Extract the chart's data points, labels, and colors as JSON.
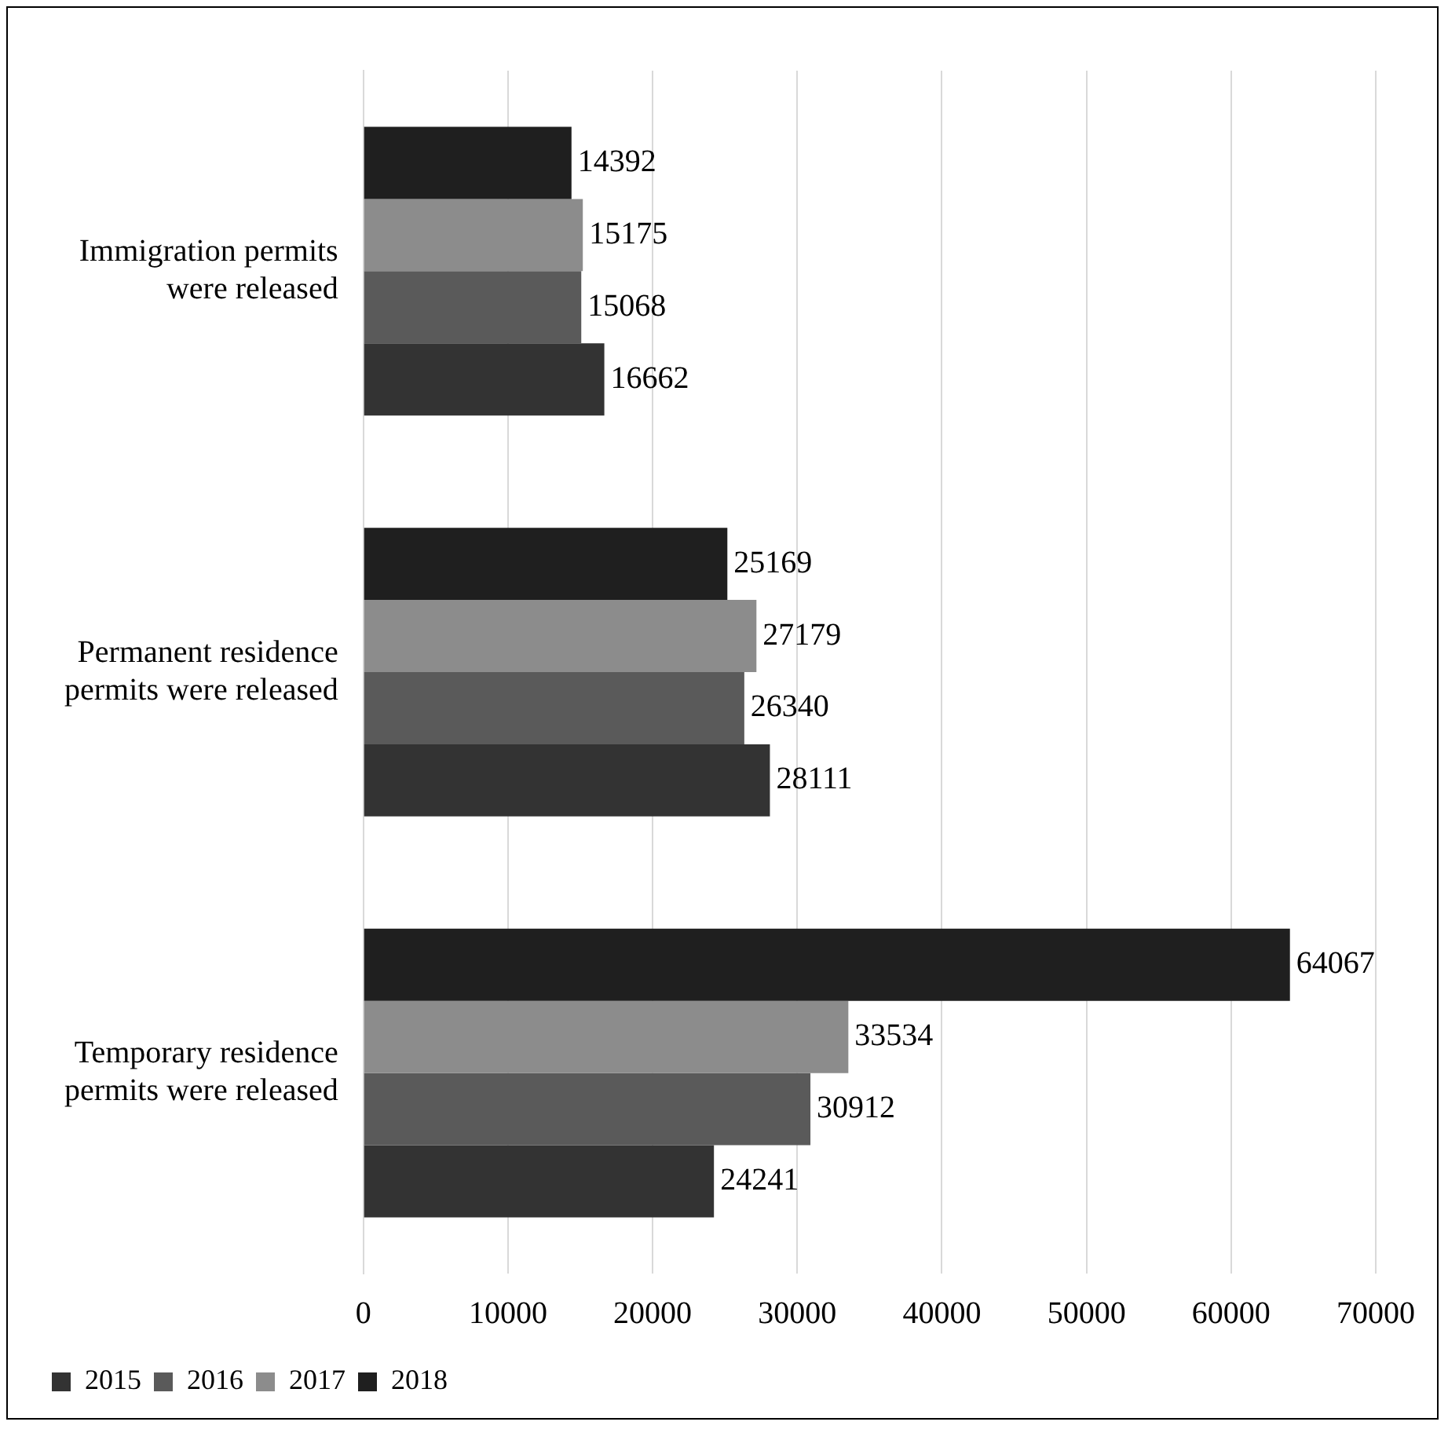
{
  "chart_data": {
    "type": "bar",
    "orientation": "horizontal",
    "categories": [
      "Immigration permits were released",
      "Permanent residence permits were released",
      "Temporary residence permits were released"
    ],
    "series": [
      {
        "name": "2015",
        "color": "#333333",
        "values": [
          16662,
          28111,
          24241
        ]
      },
      {
        "name": "2016",
        "color": "#5a5a5a",
        "values": [
          15068,
          26340,
          30912
        ]
      },
      {
        "name": "2017",
        "color": "#8c8c8c",
        "values": [
          15175,
          27179,
          33534
        ]
      },
      {
        "name": "2018",
        "color": "#1f1f1f",
        "values": [
          14392,
          25169,
          64067
        ]
      }
    ],
    "xlim": [
      0,
      70000
    ],
    "xticks": [
      0,
      10000,
      20000,
      30000,
      40000,
      50000,
      60000,
      70000
    ],
    "grid": "x",
    "legend": "bottom",
    "data_labels": true
  }
}
